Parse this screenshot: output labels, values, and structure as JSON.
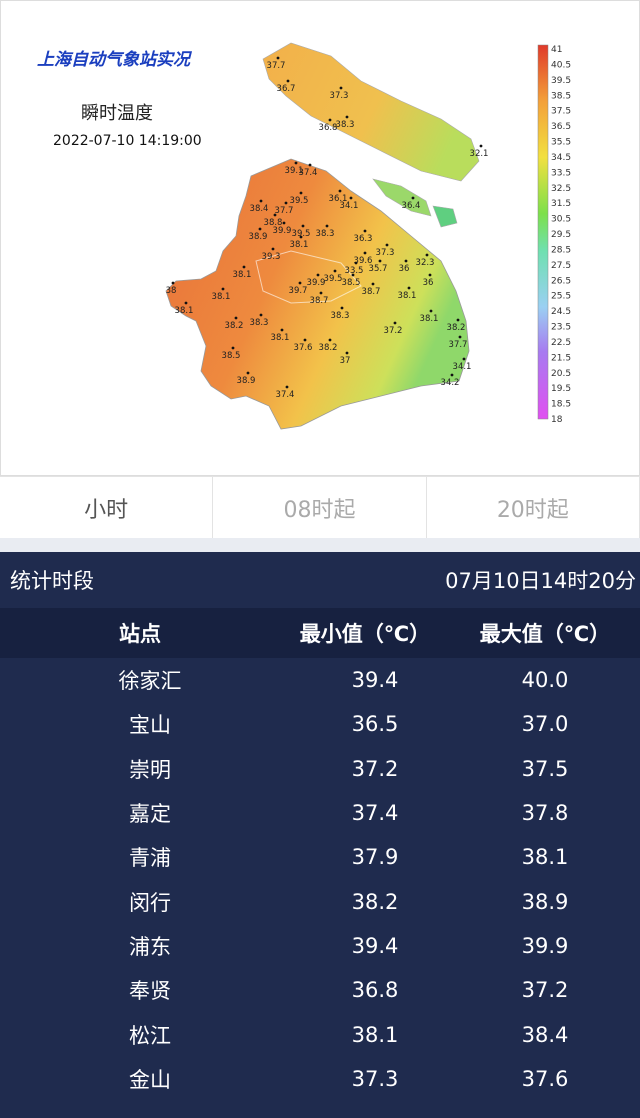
{
  "map": {
    "title": "上海自动气象站实况",
    "subtitle": "瞬时温度",
    "time": "2022-07-10 14:19:00",
    "stations": [
      "37.7",
      "36.7",
      "37.3",
      "36.8",
      "38.3",
      "32.1",
      "39.1",
      "37.4",
      "36.1",
      "34.1",
      "36.4",
      "38.4",
      "37.7",
      "39.5",
      "38.8",
      "39.9",
      "39.5",
      "38.9",
      "38.3",
      "36.3",
      "38.1",
      "37.3",
      "39.3",
      "32.3",
      "39.6",
      "35.7",
      "36",
      "33.5",
      "39.9",
      "39.5",
      "38.5",
      "36",
      "38.1",
      "39.7",
      "38.7",
      "38.1",
      "38",
      "38.1",
      "38.7",
      "38.1",
      "38.2",
      "38.3",
      "38.3",
      "38.1",
      "37.2",
      "38.2",
      "38.1",
      "37.6",
      "38.2",
      "37",
      "37.7",
      "38.5",
      "34.1",
      "38.9",
      "34.2",
      "37.4"
    ],
    "legend": [
      "41",
      "40.5",
      "39.5",
      "38.5",
      "37.5",
      "36.5",
      "35.5",
      "34.5",
      "33.5",
      "32.5",
      "31.5",
      "30.5",
      "29.5",
      "28.5",
      "27.5",
      "26.5",
      "25.5",
      "24.5",
      "23.5",
      "22.5",
      "21.5",
      "20.5",
      "19.5",
      "18.5",
      "18"
    ]
  },
  "tabs": [
    "小时",
    "08时起",
    "20时起"
  ],
  "table": {
    "period_label": "统计时段",
    "period": "07月10日14时20分",
    "columns": [
      "站点",
      "最小值（℃）",
      "最大值（℃）"
    ],
    "rows": [
      [
        "徐家汇",
        "39.4",
        "40.0"
      ],
      [
        "宝山",
        "36.5",
        "37.0"
      ],
      [
        "崇明",
        "37.2",
        "37.5"
      ],
      [
        "嘉定",
        "37.4",
        "37.8"
      ],
      [
        "青浦",
        "37.9",
        "38.1"
      ],
      [
        "闵行",
        "38.2",
        "38.9"
      ],
      [
        "浦东",
        "39.4",
        "39.9"
      ],
      [
        "奉贤",
        "36.8",
        "37.2"
      ],
      [
        "松江",
        "38.1",
        "38.4"
      ],
      [
        "金山",
        "37.3",
        "37.6"
      ]
    ]
  }
}
